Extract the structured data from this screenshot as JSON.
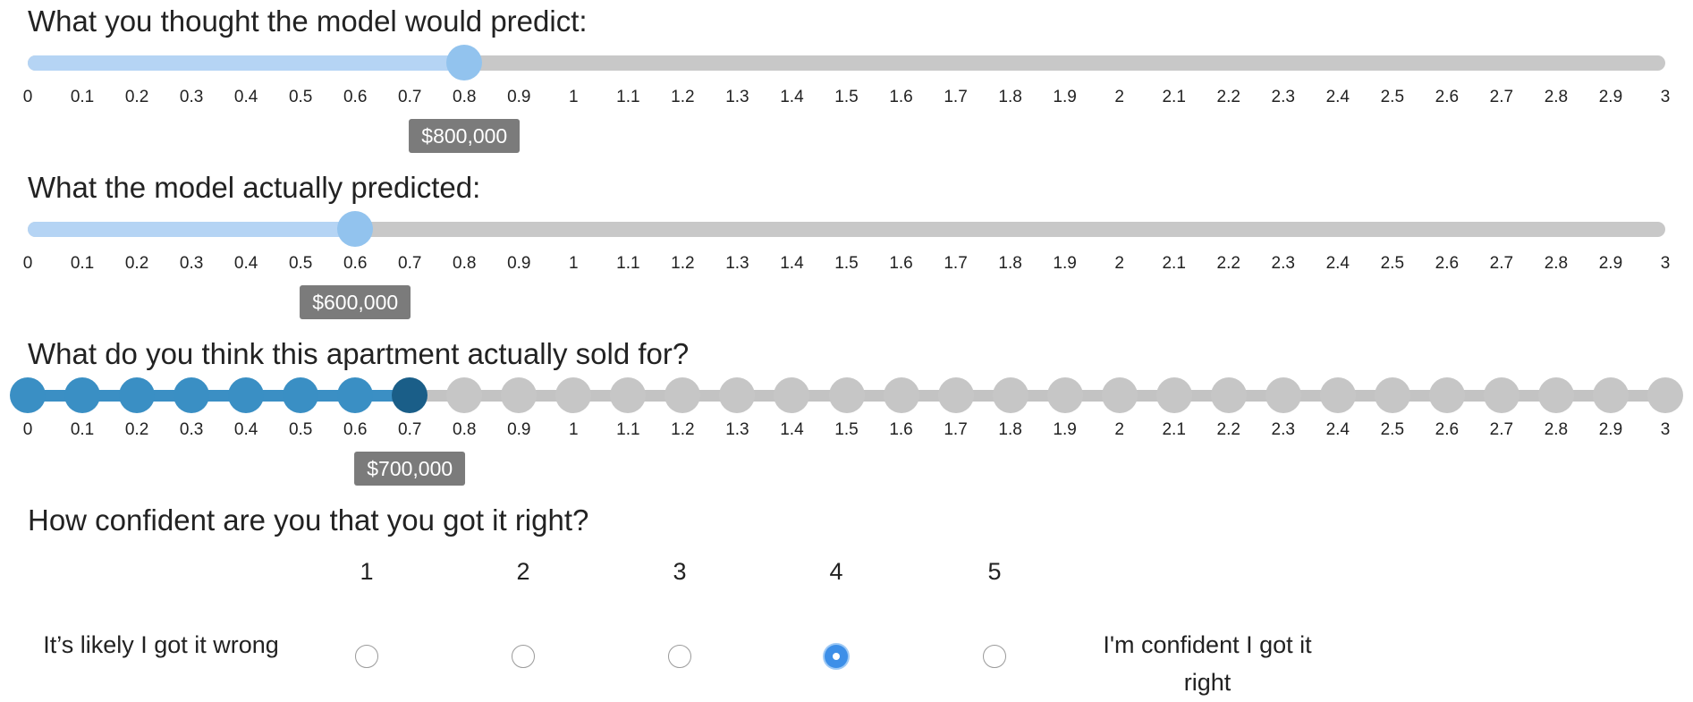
{
  "questions": {
    "q1": "What you thought the model would predict:",
    "q2": "What the model actually predicted:",
    "q3": "What do you think this apartment actually sold for?",
    "q4": "How confident are you that you got it right?"
  },
  "ticks": [
    "0",
    "0.1",
    "0.2",
    "0.3",
    "0.4",
    "0.5",
    "0.6",
    "0.7",
    "0.8",
    "0.9",
    "1",
    "1.1",
    "1.2",
    "1.3",
    "1.4",
    "1.5",
    "1.6",
    "1.7",
    "1.8",
    "1.9",
    "2",
    "2.1",
    "2.2",
    "2.3",
    "2.4",
    "2.5",
    "2.6",
    "2.7",
    "2.8",
    "2.9",
    "3"
  ],
  "sliders": [
    {
      "value": 0.8,
      "label": "$800,000",
      "style": "plain"
    },
    {
      "value": 0.6,
      "label": "$600,000",
      "style": "plain"
    },
    {
      "value": 0.7,
      "label": "$700,000",
      "style": "dotted"
    }
  ],
  "slider_range": [
    0,
    3
  ],
  "likert": {
    "options": [
      "1",
      "2",
      "3",
      "4",
      "5"
    ],
    "selected": "4",
    "low_label": "It’s likely I got it wrong",
    "high_label": "I'm confident I got it right"
  },
  "colors": {
    "fill_light": "#b5d4f4",
    "handle": "#92c3ee",
    "track": "#c8c8c8",
    "dot_on": "#3a8fc4",
    "dot_selected": "#1a5e88",
    "radio_checked": "#3d8fe8",
    "tooltip": "#7b7b7b"
  }
}
